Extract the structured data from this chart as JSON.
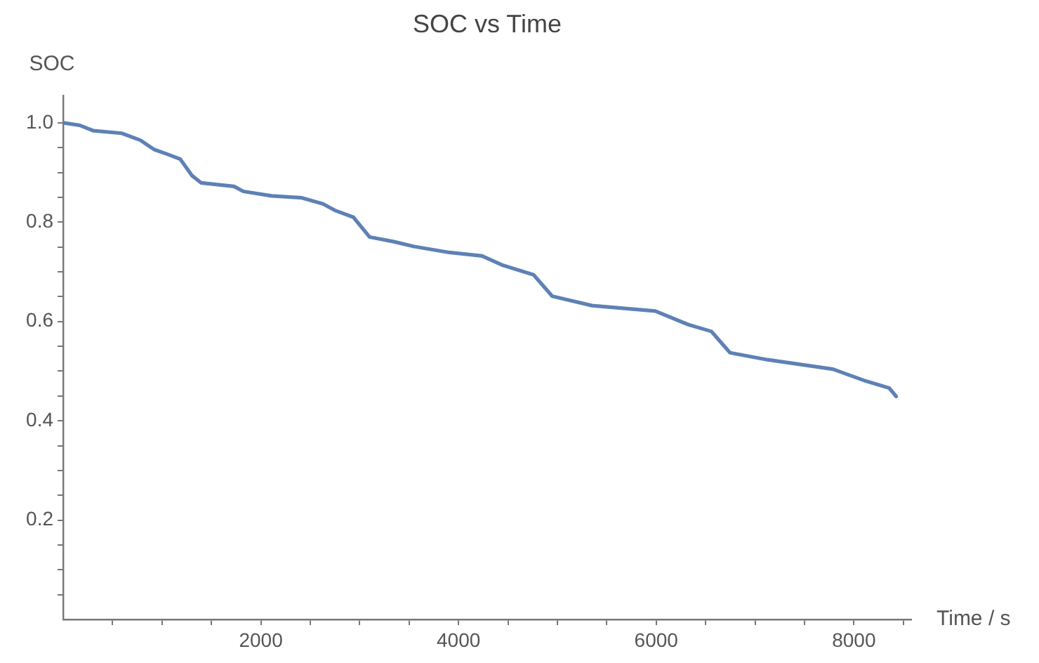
{
  "chart_data": {
    "type": "line",
    "title": "SOC vs Time",
    "xlabel": "Time / s",
    "ylabel": "SOC",
    "x": [
      0,
      166,
      308,
      592,
      781,
      923,
      1065,
      1184,
      1302,
      1397,
      1728,
      1823,
      2107,
      2415,
      2628,
      2746,
      2936,
      3101,
      3338,
      3551,
      3906,
      4237,
      4450,
      4759,
      4948,
      5351,
      5990,
      6321,
      6558,
      6747,
      7126,
      7788,
      8121,
      8357,
      8428
    ],
    "series": [
      {
        "color": "#5e81b5",
        "values": [
          1.0,
          0.995,
          0.984,
          0.979,
          0.965,
          0.946,
          0.936,
          0.927,
          0.894,
          0.879,
          0.872,
          0.862,
          0.853,
          0.849,
          0.837,
          0.824,
          0.81,
          0.77,
          0.761,
          0.751,
          0.739,
          0.732,
          0.713,
          0.694,
          0.651,
          0.632,
          0.621,
          0.594,
          0.58,
          0.537,
          0.523,
          0.504,
          0.48,
          0.466,
          0.449
        ]
      }
    ],
    "xlim": [
      0,
      8580
    ],
    "xticks": [
      {
        "value": 500,
        "label": null
      },
      {
        "value": 1000,
        "label": null
      },
      {
        "value": 1500,
        "label": null
      },
      2000,
      {
        "value": 2500,
        "label": null
      },
      {
        "value": 3000,
        "label": null
      },
      {
        "value": 3500,
        "label": null
      },
      4000,
      {
        "value": 4500,
        "label": null
      },
      {
        "value": 5000,
        "label": null
      },
      {
        "value": 5500,
        "label": null
      },
      6000,
      {
        "value": 6500,
        "label": null
      },
      {
        "value": 7000,
        "label": null
      },
      {
        "value": 7500,
        "label": null
      },
      8000,
      {
        "value": 8500,
        "label": null
      }
    ],
    "ylim": [
      0,
      1.055
    ],
    "yticks": [
      {
        "value": 0.05,
        "label": null
      },
      {
        "value": 0.1,
        "label": null
      },
      {
        "value": 0.15,
        "label": null
      },
      0.2,
      {
        "value": 0.25,
        "label": null
      },
      {
        "value": 0.3,
        "label": null
      },
      {
        "value": 0.35,
        "label": null
      },
      0.4,
      {
        "value": 0.45,
        "label": null
      },
      {
        "value": 0.5,
        "label": null
      },
      {
        "value": 0.55,
        "label": null
      },
      0.6,
      {
        "value": 0.65,
        "label": null
      },
      {
        "value": 0.7,
        "label": null
      },
      {
        "value": 0.75,
        "label": null
      },
      {
        "value": 0.8,
        "label": "0.8"
      },
      {
        "value": 0.85,
        "label": null
      },
      {
        "value": 0.9,
        "label": null
      },
      {
        "value": 0.95,
        "label": null
      },
      {
        "value": 1,
        "label": "1.0"
      }
    ],
    "grid": false,
    "legend": false,
    "marker": "none",
    "line_style": "solid"
  }
}
